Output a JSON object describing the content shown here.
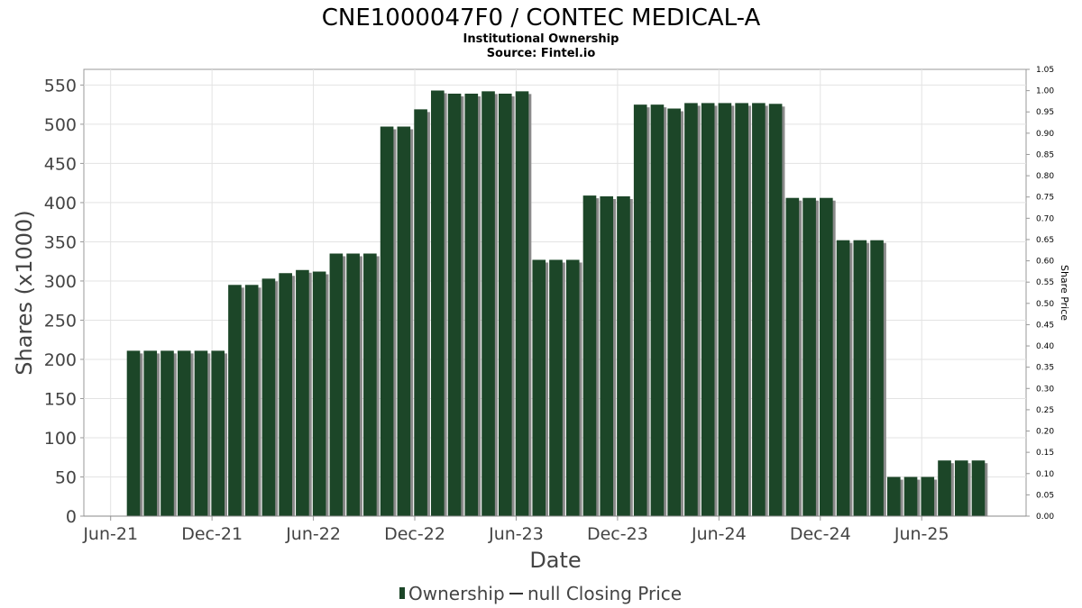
{
  "chart_data": {
    "type": "bar",
    "title": "CNE1000047F0 / CONTEC MEDICAL-A",
    "subtitle": "Institutional Ownership",
    "source": "Source: Fintel.io",
    "xlabel": "Date",
    "ylabel": "Shares (x1000)",
    "y2label": "Share Price",
    "ylim": [
      0,
      570
    ],
    "y2lim": [
      0,
      1.05
    ],
    "yticks": [
      "0",
      "50",
      "100",
      "150",
      "200",
      "250",
      "300",
      "350",
      "400",
      "450",
      "500",
      "550"
    ],
    "y2ticks": [
      "0.00",
      "0.05",
      "0.10",
      "0.15",
      "0.20",
      "0.25",
      "0.30",
      "0.35",
      "0.40",
      "0.45",
      "0.50",
      "0.55",
      "0.60",
      "0.65",
      "0.70",
      "0.75",
      "0.80",
      "0.85",
      "0.90",
      "0.95",
      "1.00",
      "1.05"
    ],
    "xticks": [
      "Jun-21",
      "Dec-21",
      "Jun-22",
      "Dec-22",
      "Jun-23",
      "Dec-23",
      "Jun-24",
      "Dec-24",
      "Jun-25"
    ],
    "grid": true,
    "legend_position": "bottom-center",
    "series": [
      {
        "name": "Ownership",
        "color": "#1c4628",
        "values": [
          211,
          211,
          211,
          211,
          211,
          211,
          295,
          295,
          303,
          310,
          314,
          312,
          335,
          335,
          335,
          497,
          497,
          519,
          543,
          539,
          539,
          542,
          539,
          542,
          327,
          327,
          327,
          409,
          408,
          408,
          525,
          525,
          520,
          527,
          527,
          527,
          527,
          527,
          526,
          406,
          406,
          406,
          352,
          352,
          352,
          50,
          50,
          50,
          71,
          71,
          71
        ]
      },
      {
        "name": "null Closing Price",
        "color": "#333333",
        "values": []
      }
    ]
  }
}
